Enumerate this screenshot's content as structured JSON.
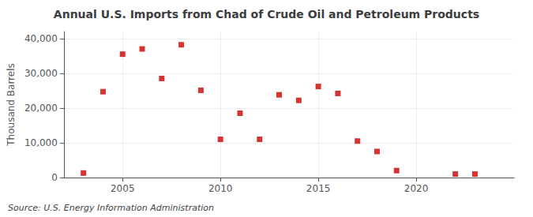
{
  "chart_data": {
    "type": "scatter",
    "title": "Annual U.S. Imports from Chad of Crude Oil and Petroleum Products",
    "ylabel": "Thousand Barrels",
    "source": "Source: U.S. Energy Information Administration",
    "x": [
      2003,
      2004,
      2005,
      2006,
      2007,
      2008,
      2009,
      2010,
      2011,
      2012,
      2013,
      2014,
      2015,
      2016,
      2017,
      2018,
      2019,
      2022,
      2023
    ],
    "values": [
      1300,
      24700,
      35500,
      37000,
      28500,
      38200,
      25100,
      11000,
      18500,
      11000,
      23800,
      22200,
      26200,
      24200,
      10500,
      7500,
      2000,
      1000,
      1000
    ],
    "color": "#cc0000",
    "marker": "square",
    "xlim": [
      2002,
      2025
    ],
    "xticks": [
      2005,
      2010,
      2015,
      2020
    ],
    "ylim": [
      0,
      42000
    ],
    "yticks": [
      0,
      {
        "value": 10000,
        "label": "10,000"
      },
      {
        "value": 20000,
        "label": "20,000"
      },
      {
        "value": 30000,
        "label": "30,000"
      },
      {
        "value": 40000,
        "label": "40,000"
      }
    ],
    "grid": true
  }
}
